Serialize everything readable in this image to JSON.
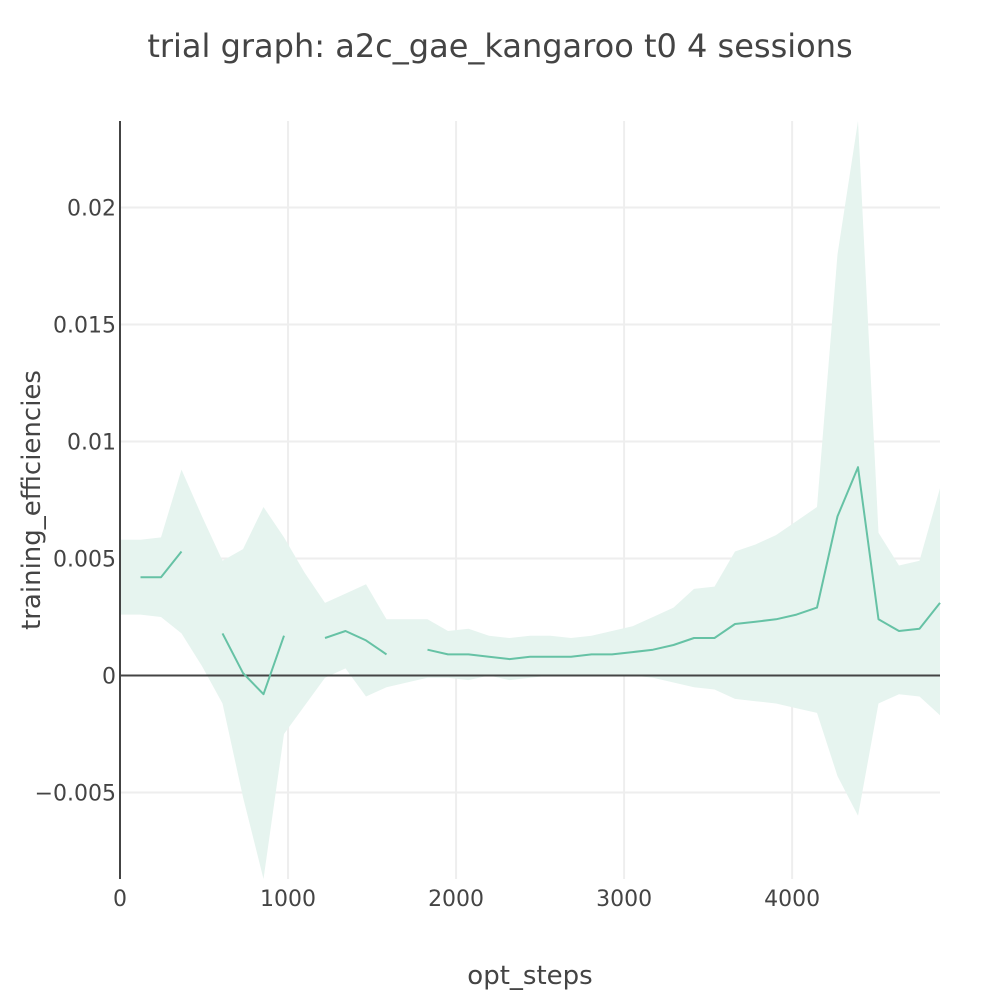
{
  "chart_data": {
    "type": "line",
    "title": "trial graph: a2c_gae_kangaroo t0 4 sessions",
    "xlabel": "opt_steps",
    "ylabel": "training_efficiencies",
    "xlim": [
      0,
      4880
    ],
    "ylim": [
      -0.0087,
      0.0237
    ],
    "x_ticks": [
      {
        "value": 0,
        "label": "0"
      },
      {
        "value": 1000,
        "label": "1000"
      },
      {
        "value": 2000,
        "label": "2000"
      },
      {
        "value": 3000,
        "label": "3000"
      },
      {
        "value": 4000,
        "label": "4000"
      }
    ],
    "y_ticks": [
      {
        "value": -0.005,
        "label": "−0.005"
      },
      {
        "value": 0,
        "label": "0"
      },
      {
        "value": 0.005,
        "label": "0.005"
      },
      {
        "value": 0.01,
        "label": "0.01"
      },
      {
        "value": 0.015,
        "label": "0.015"
      },
      {
        "value": 0.02,
        "label": "0.02"
      }
    ],
    "grid": true,
    "zero_line": true,
    "colors": {
      "line": "#66c2a5",
      "band": "#e6f4ef",
      "grid": "#eeeeee",
      "axis": "#444444"
    },
    "series": [
      {
        "x": [
          0,
          122,
          244,
          366,
          488,
          610,
          732,
          854,
          976,
          1098,
          1220,
          1342,
          1464,
          1586,
          1708,
          1830,
          1952,
          2074,
          2196,
          2318,
          2440,
          2562,
          2684,
          2806,
          2928,
          3050,
          3172,
          3294,
          3416,
          3538,
          3660,
          3782,
          3904,
          4026,
          4148,
          4270,
          4392,
          4514,
          4636,
          4758,
          4880
        ],
        "y": [
          null,
          0.0042,
          0.0042,
          0.0053,
          null,
          0.0018,
          0.0001,
          -0.0008,
          0.0017,
          null,
          0.0016,
          0.0019,
          0.0015,
          0.0009,
          null,
          0.0011,
          0.0009,
          0.0009,
          0.0008,
          0.0007,
          0.0008,
          0.0008,
          0.0008,
          0.0009,
          0.0009,
          0.001,
          0.0011,
          0.0013,
          0.0016,
          0.0016,
          0.0022,
          0.0023,
          0.0024,
          0.0026,
          0.0029,
          0.0068,
          0.0089,
          0.0024,
          0.0019,
          0.002,
          0.0031
        ],
        "upper": [
          0.0058,
          0.0058,
          0.0059,
          0.0088,
          0.0068,
          0.0049,
          0.0054,
          0.0072,
          0.0059,
          0.0044,
          0.0031,
          0.0035,
          0.0039,
          0.0024,
          0.0024,
          0.0024,
          0.0019,
          0.002,
          0.0017,
          0.0016,
          0.0017,
          0.0017,
          0.0016,
          0.0017,
          0.0019,
          0.0021,
          0.0025,
          0.0029,
          0.0037,
          0.0038,
          0.0053,
          0.0056,
          0.006,
          0.0066,
          0.0072,
          0.018,
          0.0237,
          0.0061,
          0.0047,
          0.0049,
          0.008
        ],
        "lower": [
          0.0026,
          0.0026,
          0.0025,
          0.0018,
          0.0004,
          -0.0012,
          -0.0052,
          -0.0087,
          -0.0025,
          -0.0013,
          -0.0001,
          0.0003,
          -0.0009,
          -0.0005,
          -0.0003,
          -0.0001,
          -0.0001,
          -0.0002,
          0.0,
          -0.0002,
          -0.0001,
          0.0,
          0.0,
          0.0,
          0.0,
          0.0,
          -0.0001,
          -0.0003,
          -0.0005,
          -0.0006,
          -0.001,
          -0.0011,
          -0.0012,
          -0.0014,
          -0.0016,
          -0.0043,
          -0.006,
          -0.0012,
          -0.0008,
          -0.0009,
          -0.0017
        ]
      }
    ]
  }
}
